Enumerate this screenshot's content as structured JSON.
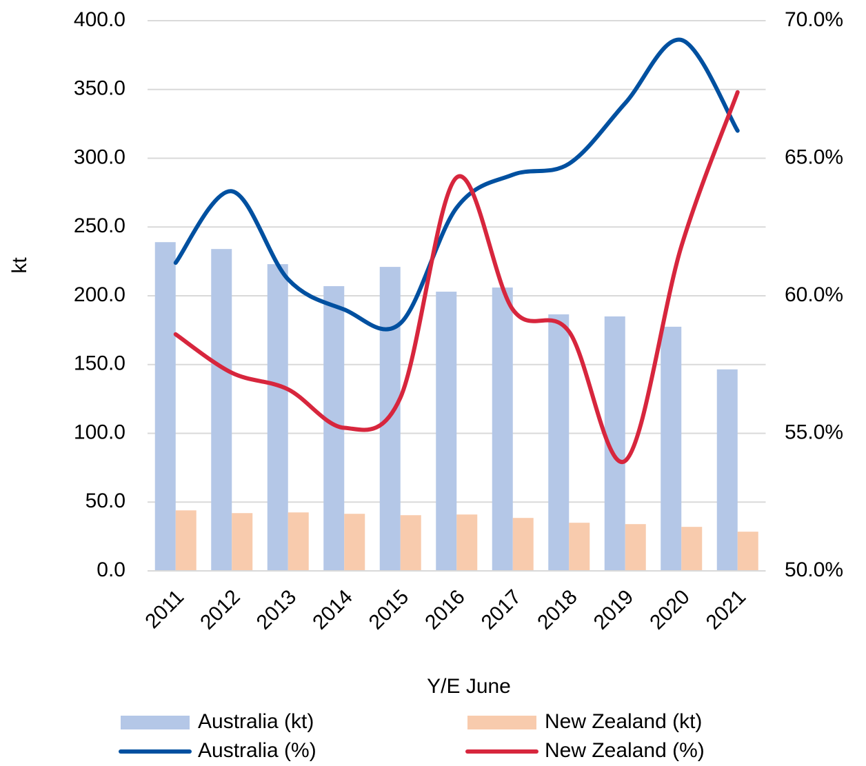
{
  "chart_data": {
    "type": "bar-line",
    "y_label": "kt",
    "x_label": "Y/E June",
    "categories": [
      "2011",
      "2012",
      "2013",
      "2014",
      "2015",
      "2016",
      "2017",
      "2018",
      "2019",
      "2020",
      "2021"
    ],
    "series": [
      {
        "name": "Australia (kt)",
        "type": "bar",
        "color": "#b4c7e7",
        "values": [
          239,
          234,
          223,
          207,
          221,
          203,
          206,
          186.5,
          185,
          177.5,
          146.5
        ]
      },
      {
        "name": "New Zealand (kt)",
        "type": "bar",
        "color": "#f8cbad",
        "values": [
          44,
          42,
          42.5,
          41.5,
          40.5,
          41,
          38.5,
          35,
          34,
          32,
          28.5
        ]
      },
      {
        "name": "Australia (%)",
        "type": "line",
        "axis": "y2",
        "color": "#0050a0",
        "values": [
          61.2,
          63.8,
          60.6,
          59.5,
          59.0,
          63.2,
          64.4,
          64.8,
          67.0,
          69.3,
          66.0
        ]
      },
      {
        "name": "New Zealand (%)",
        "type": "line",
        "axis": "y2",
        "color": "#d7263d",
        "values": [
          58.6,
          57.2,
          56.6,
          55.2,
          56.3,
          64.3,
          59.5,
          58.7,
          54.0,
          61.8,
          67.4
        ]
      }
    ],
    "ylim": [
      0,
      400
    ],
    "yticks": [
      {
        "value": 0,
        "label": "0.0"
      },
      {
        "value": 50,
        "label": "50.0"
      },
      {
        "value": 100,
        "label": "100.0"
      },
      {
        "value": 150,
        "label": "150.0"
      },
      {
        "value": 200,
        "label": "200.0"
      },
      {
        "value": 250,
        "label": "250.0"
      },
      {
        "value": 300,
        "label": "300.0"
      },
      {
        "value": 350,
        "label": "350.0"
      },
      {
        "value": 400,
        "label": "400.0"
      }
    ],
    "y2lim": [
      50,
      70
    ],
    "y2ticks": [
      {
        "value": 50,
        "label": "50.0%"
      },
      {
        "value": 55,
        "label": "55.0%"
      },
      {
        "value": 60,
        "label": "60.0%"
      },
      {
        "value": 65,
        "label": "65.0%"
      },
      {
        "value": 70,
        "label": "70.0%"
      }
    ],
    "grid": true,
    "smooth": true,
    "legend": "bottom"
  }
}
